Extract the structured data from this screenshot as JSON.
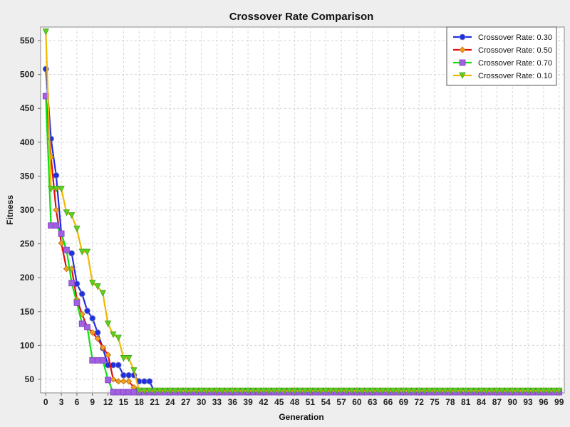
{
  "chart_data": {
    "type": "line",
    "title": "Crossover Rate Comparison",
    "xlabel": "Generation",
    "ylabel": "Fitness",
    "xlim": [
      -1,
      100
    ],
    "ylim": [
      30,
      570
    ],
    "x_ticks": [
      0,
      3,
      6,
      9,
      12,
      15,
      18,
      21,
      24,
      27,
      30,
      33,
      36,
      39,
      42,
      45,
      48,
      51,
      54,
      57,
      60,
      63,
      66,
      69,
      72,
      75,
      78,
      81,
      84,
      87,
      90,
      93,
      96,
      99
    ],
    "y_ticks": [
      50,
      100,
      150,
      200,
      250,
      300,
      350,
      400,
      450,
      500,
      550
    ],
    "grid": true,
    "legend_position": "top-right",
    "series": [
      {
        "name": "Crossover Rate: 0.30",
        "color": "#2030e0",
        "marker": "circle",
        "x": [
          0,
          1,
          2,
          3,
          4,
          5,
          6,
          7,
          8,
          9,
          10,
          11,
          12,
          13,
          14,
          15,
          16,
          17,
          18,
          19,
          20,
          21,
          22,
          23,
          24,
          25,
          26,
          27,
          28,
          29,
          30,
          31,
          32,
          33,
          34,
          35,
          36,
          37,
          38,
          39,
          40,
          41,
          42,
          43,
          44,
          45,
          46,
          47,
          48,
          49,
          50,
          51,
          52,
          53,
          54,
          55,
          56,
          57,
          58,
          59,
          60,
          61,
          62,
          63,
          64,
          65,
          66,
          67,
          68,
          69,
          70,
          71,
          72,
          73,
          74,
          75,
          76,
          77,
          78,
          79,
          80,
          81,
          82,
          83,
          84,
          85,
          86,
          87,
          88,
          89,
          90,
          91,
          92,
          93,
          94,
          95,
          96,
          97,
          98,
          99
        ],
        "values": [
          508,
          405,
          351,
          265,
          240,
          236,
          191,
          176,
          151,
          140,
          119,
          96,
          71,
          71,
          71,
          56,
          56,
          56,
          47,
          47,
          47,
          31,
          31,
          31,
          31,
          31,
          31,
          31,
          31,
          31,
          31,
          31,
          31,
          31,
          31,
          31,
          31,
          31,
          31,
          31,
          31,
          31,
          31,
          31,
          31,
          31,
          31,
          31,
          31,
          31,
          31,
          31,
          31,
          31,
          31,
          31,
          31,
          31,
          31,
          31,
          31,
          31,
          31,
          31,
          31,
          31,
          31,
          31,
          31,
          31,
          31,
          31,
          31,
          31,
          31,
          31,
          31,
          31,
          31,
          31,
          31,
          31,
          31,
          31,
          31,
          31,
          31,
          31,
          31,
          31,
          31,
          31,
          31,
          31,
          31,
          31,
          31,
          31,
          31,
          31
        ]
      },
      {
        "name": "Crossover Rate: 0.50",
        "color": "#e01010",
        "marker": "diamond",
        "x": [
          0,
          1,
          2,
          3,
          4,
          5,
          6,
          7,
          8,
          9,
          10,
          11,
          12,
          13,
          14,
          15,
          16,
          17,
          18,
          19,
          20,
          21,
          22,
          23,
          24,
          25,
          26,
          27,
          28,
          29,
          30,
          31,
          32,
          33,
          34,
          35,
          36,
          37,
          38,
          39,
          40,
          41,
          42,
          43,
          44,
          45,
          46,
          47,
          48,
          49,
          50,
          51,
          52,
          53,
          54,
          55,
          56,
          57,
          58,
          59,
          60,
          61,
          62,
          63,
          64,
          65,
          66,
          67,
          68,
          69,
          70,
          71,
          72,
          73,
          74,
          75,
          76,
          77,
          78,
          79,
          80,
          81,
          82,
          83,
          84,
          85,
          86,
          87,
          88,
          89,
          90,
          91,
          92,
          93,
          94,
          95,
          96,
          97,
          98,
          99
        ],
        "values": [
          468,
          378,
          300,
          251,
          213,
          213,
          168,
          146,
          127,
          119,
          110,
          97,
          86,
          50,
          47,
          47,
          47,
          38,
          33,
          33,
          33,
          33,
          33,
          33,
          33,
          33,
          33,
          33,
          33,
          33,
          33,
          33,
          33,
          33,
          33,
          33,
          33,
          33,
          33,
          33,
          33,
          33,
          33,
          33,
          33,
          33,
          33,
          33,
          33,
          33,
          33,
          33,
          33,
          33,
          33,
          33,
          33,
          33,
          33,
          33,
          33,
          33,
          33,
          33,
          33,
          33,
          33,
          33,
          33,
          33,
          33,
          33,
          33,
          33,
          33,
          33,
          33,
          33,
          33,
          33,
          33,
          33,
          33,
          33,
          33,
          33,
          33,
          33,
          33,
          33,
          33,
          33,
          33,
          33,
          33,
          33,
          33,
          33,
          33,
          33
        ]
      },
      {
        "name": "Crossover Rate: 0.70",
        "color": "#10e010",
        "marker": "square",
        "x": [
          0,
          1,
          2,
          3,
          4,
          5,
          6,
          7,
          8,
          9,
          10,
          11,
          12,
          13,
          14,
          15,
          16,
          17,
          18,
          19,
          20,
          21,
          22,
          23,
          24,
          25,
          26,
          27,
          28,
          29,
          30,
          31,
          32,
          33,
          34,
          35,
          36,
          37,
          38,
          39,
          40,
          41,
          42,
          43,
          44,
          45,
          46,
          47,
          48,
          49,
          50,
          51,
          52,
          53,
          54,
          55,
          56,
          57,
          58,
          59,
          60,
          61,
          62,
          63,
          64,
          65,
          66,
          67,
          68,
          69,
          70,
          71,
          72,
          73,
          74,
          75,
          76,
          77,
          78,
          79,
          80,
          81,
          82,
          83,
          84,
          85,
          86,
          87,
          88,
          89,
          90,
          91,
          92,
          93,
          94,
          95,
          96,
          97,
          98,
          99
        ],
        "values": [
          468,
          277,
          277,
          265,
          241,
          192,
          163,
          132,
          127,
          78,
          78,
          78,
          49,
          31,
          31,
          31,
          31,
          31,
          31,
          31,
          31,
          31,
          31,
          31,
          31,
          31,
          31,
          31,
          31,
          31,
          31,
          31,
          31,
          31,
          31,
          31,
          31,
          31,
          31,
          31,
          31,
          31,
          31,
          31,
          31,
          31,
          31,
          31,
          31,
          31,
          31,
          31,
          31,
          31,
          31,
          31,
          31,
          31,
          31,
          31,
          31,
          31,
          31,
          31,
          31,
          31,
          31,
          31,
          31,
          31,
          31,
          31,
          31,
          31,
          31,
          31,
          31,
          31,
          31,
          31,
          31,
          31,
          31,
          31,
          31,
          31,
          31,
          31,
          31,
          31,
          31,
          31,
          31,
          31,
          31,
          31,
          31,
          31,
          31,
          31
        ]
      },
      {
        "name": "Crossover Rate: 0.10",
        "color": "#f0b800",
        "marker": "triangle-down",
        "x": [
          0,
          1,
          2,
          3,
          4,
          5,
          6,
          7,
          8,
          9,
          10,
          11,
          12,
          13,
          14,
          15,
          16,
          17,
          18,
          19,
          20,
          21,
          22,
          23,
          24,
          25,
          26,
          27,
          28,
          29,
          30,
          31,
          32,
          33,
          34,
          35,
          36,
          37,
          38,
          39,
          40,
          41,
          42,
          43,
          44,
          45,
          46,
          47,
          48,
          49,
          50,
          51,
          52,
          53,
          54,
          55,
          56,
          57,
          58,
          59,
          60,
          61,
          62,
          63,
          64,
          65,
          66,
          67,
          68,
          69,
          70,
          71,
          72,
          73,
          74,
          75,
          76,
          77,
          78,
          79,
          80,
          81,
          82,
          83,
          84,
          85,
          86,
          87,
          88,
          89,
          90,
          91,
          92,
          93,
          94,
          95,
          96,
          97,
          98,
          99
        ],
        "values": [
          563,
          331,
          331,
          331,
          296,
          292,
          272,
          238,
          238,
          192,
          187,
          177,
          132,
          116,
          111,
          81,
          81,
          63,
          33,
          33,
          33,
          33,
          33,
          33,
          33,
          33,
          33,
          33,
          33,
          33,
          33,
          33,
          33,
          33,
          33,
          33,
          33,
          33,
          33,
          33,
          33,
          33,
          33,
          33,
          33,
          33,
          33,
          33,
          33,
          33,
          33,
          33,
          33,
          33,
          33,
          33,
          33,
          33,
          33,
          33,
          33,
          33,
          33,
          33,
          33,
          33,
          33,
          33,
          33,
          33,
          33,
          33,
          33,
          33,
          33,
          33,
          33,
          33,
          33,
          33,
          33,
          33,
          33,
          33,
          33,
          33,
          33,
          33,
          33,
          33,
          33,
          33,
          33,
          33,
          33,
          33,
          33,
          33,
          33,
          33
        ]
      }
    ]
  }
}
